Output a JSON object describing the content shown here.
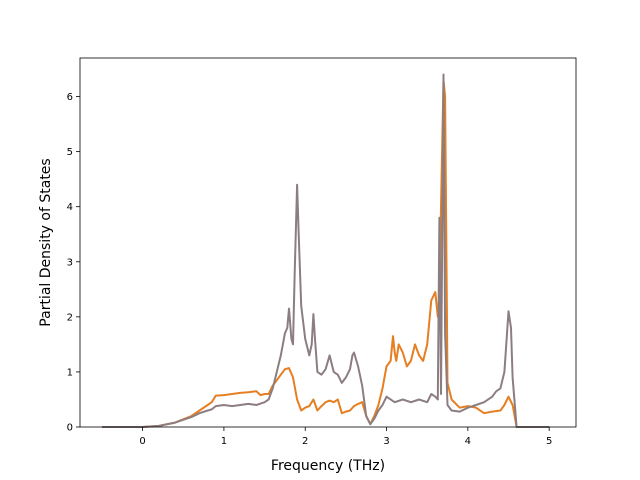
{
  "chart_data": {
    "type": "line",
    "title": "",
    "xlabel": "Frequency (THz)",
    "ylabel": "Partial Density of States",
    "xlim": [
      -0.77,
      5.33
    ],
    "ylim": [
      0,
      6.7
    ],
    "xticks": [
      0,
      1,
      2,
      3,
      4,
      5
    ],
    "yticks": [
      0,
      1,
      2,
      3,
      4,
      5,
      6
    ],
    "grid": false,
    "legend": "none",
    "series": [
      {
        "color": "#e67e22",
        "x": [
          -0.5,
          0.0,
          0.2,
          0.4,
          0.6,
          0.7,
          0.8,
          0.85,
          0.9,
          1.0,
          1.1,
          1.2,
          1.3,
          1.4,
          1.45,
          1.5,
          1.55,
          1.6,
          1.65,
          1.7,
          1.75,
          1.8,
          1.85,
          1.9,
          1.95,
          2.0,
          2.05,
          2.1,
          2.15,
          2.2,
          2.25,
          2.3,
          2.35,
          2.4,
          2.45,
          2.5,
          2.55,
          2.6,
          2.65,
          2.7,
          2.75,
          2.8,
          2.85,
          2.9,
          2.95,
          3.0,
          3.05,
          3.08,
          3.1,
          3.12,
          3.15,
          3.2,
          3.25,
          3.3,
          3.35,
          3.4,
          3.45,
          3.5,
          3.55,
          3.6,
          3.63,
          3.65,
          3.67,
          3.7,
          3.72,
          3.75,
          3.8,
          3.9,
          4.0,
          4.1,
          4.2,
          4.3,
          4.4,
          4.45,
          4.5,
          4.55,
          4.6,
          4.8,
          5.0
        ],
        "y": [
          0,
          0,
          0.02,
          0.08,
          0.2,
          0.3,
          0.4,
          0.45,
          0.57,
          0.58,
          0.6,
          0.62,
          0.63,
          0.65,
          0.58,
          0.6,
          0.6,
          0.75,
          0.85,
          0.95,
          1.05,
          1.07,
          0.9,
          0.5,
          0.3,
          0.35,
          0.38,
          0.5,
          0.3,
          0.38,
          0.45,
          0.48,
          0.45,
          0.5,
          0.25,
          0.28,
          0.3,
          0.38,
          0.42,
          0.45,
          0.2,
          0.05,
          0.2,
          0.4,
          0.7,
          1.1,
          1.2,
          1.65,
          1.35,
          1.2,
          1.5,
          1.35,
          1.1,
          1.2,
          1.5,
          1.3,
          1.2,
          1.5,
          2.3,
          2.45,
          2.0,
          2.2,
          4.0,
          6.3,
          6.0,
          0.8,
          0.5,
          0.35,
          0.38,
          0.35,
          0.25,
          0.28,
          0.3,
          0.4,
          0.55,
          0.4,
          0.0,
          0.0,
          0.0
        ]
      },
      {
        "color": "#8c7e80",
        "x": [
          -0.5,
          0.0,
          0.2,
          0.4,
          0.6,
          0.7,
          0.8,
          0.85,
          0.9,
          1.0,
          1.1,
          1.2,
          1.3,
          1.4,
          1.5,
          1.55,
          1.6,
          1.65,
          1.7,
          1.75,
          1.78,
          1.8,
          1.83,
          1.85,
          1.87,
          1.9,
          1.92,
          1.95,
          2.0,
          2.05,
          2.08,
          2.1,
          2.12,
          2.15,
          2.2,
          2.25,
          2.3,
          2.35,
          2.4,
          2.45,
          2.5,
          2.55,
          2.58,
          2.6,
          2.65,
          2.7,
          2.75,
          2.8,
          2.85,
          2.9,
          2.95,
          3.0,
          3.1,
          3.2,
          3.3,
          3.4,
          3.5,
          3.55,
          3.6,
          3.63,
          3.65,
          3.67,
          3.7,
          3.72,
          3.75,
          3.8,
          3.9,
          4.0,
          4.1,
          4.2,
          4.3,
          4.35,
          4.4,
          4.45,
          4.5,
          4.53,
          4.55,
          4.6,
          4.8,
          5.0
        ],
        "y": [
          0,
          0,
          0.02,
          0.08,
          0.18,
          0.25,
          0.3,
          0.32,
          0.38,
          0.4,
          0.38,
          0.4,
          0.42,
          0.4,
          0.45,
          0.5,
          0.7,
          1.0,
          1.3,
          1.7,
          1.8,
          2.15,
          1.6,
          1.5,
          2.8,
          4.4,
          3.5,
          2.2,
          1.6,
          1.3,
          1.5,
          2.05,
          1.6,
          1.0,
          0.95,
          1.05,
          1.3,
          1.0,
          0.95,
          0.8,
          0.9,
          1.05,
          1.3,
          1.35,
          1.1,
          0.75,
          0.2,
          0.05,
          0.15,
          0.3,
          0.4,
          0.55,
          0.45,
          0.5,
          0.45,
          0.5,
          0.45,
          0.6,
          0.55,
          0.5,
          3.8,
          0.6,
          6.4,
          1.7,
          0.4,
          0.3,
          0.28,
          0.35,
          0.4,
          0.45,
          0.55,
          0.65,
          0.7,
          1.0,
          2.1,
          1.8,
          0.9,
          0.0,
          0.0,
          0.0
        ]
      }
    ]
  }
}
